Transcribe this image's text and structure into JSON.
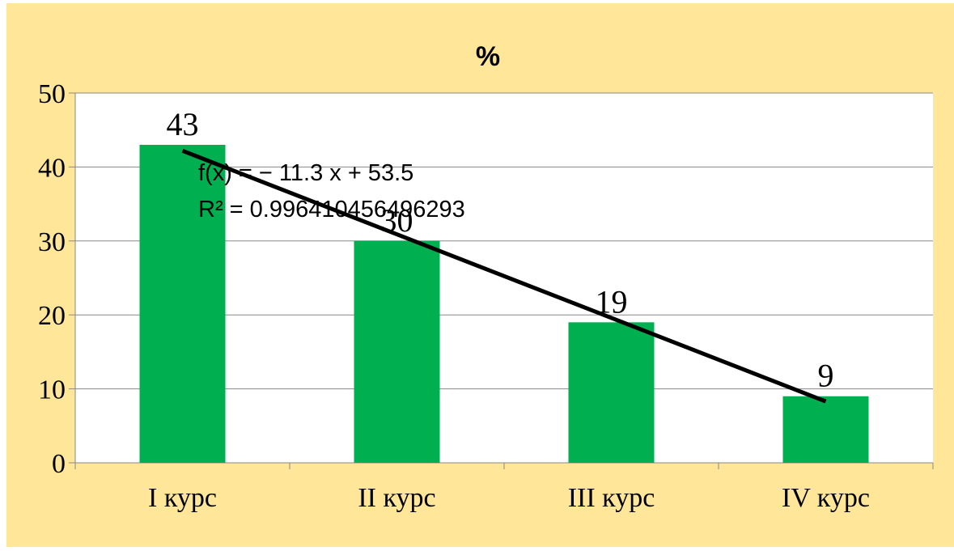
{
  "chart_data": {
    "type": "bar",
    "title": "%",
    "categories": [
      "I курс",
      "II курс",
      "III курс",
      "IV курс"
    ],
    "values": [
      43,
      30,
      19,
      9
    ],
    "data_labels": [
      "43",
      "30",
      "19",
      "9"
    ],
    "ylim": [
      0,
      50
    ],
    "yticks": [
      0,
      10,
      20,
      30,
      40,
      50
    ],
    "grid": true,
    "legend": "none",
    "trendline": {
      "type": "linear",
      "slope": -11.3,
      "intercept": 53.5,
      "equation": "f(x) = − 11.3 x + 53.5",
      "r_squared": "R² = 0.996410456496293"
    },
    "colors": {
      "background": "#ffe699",
      "plot": "#ffffff",
      "bar": "#00b050",
      "trendline": "#000000",
      "grid": "#888888"
    }
  }
}
